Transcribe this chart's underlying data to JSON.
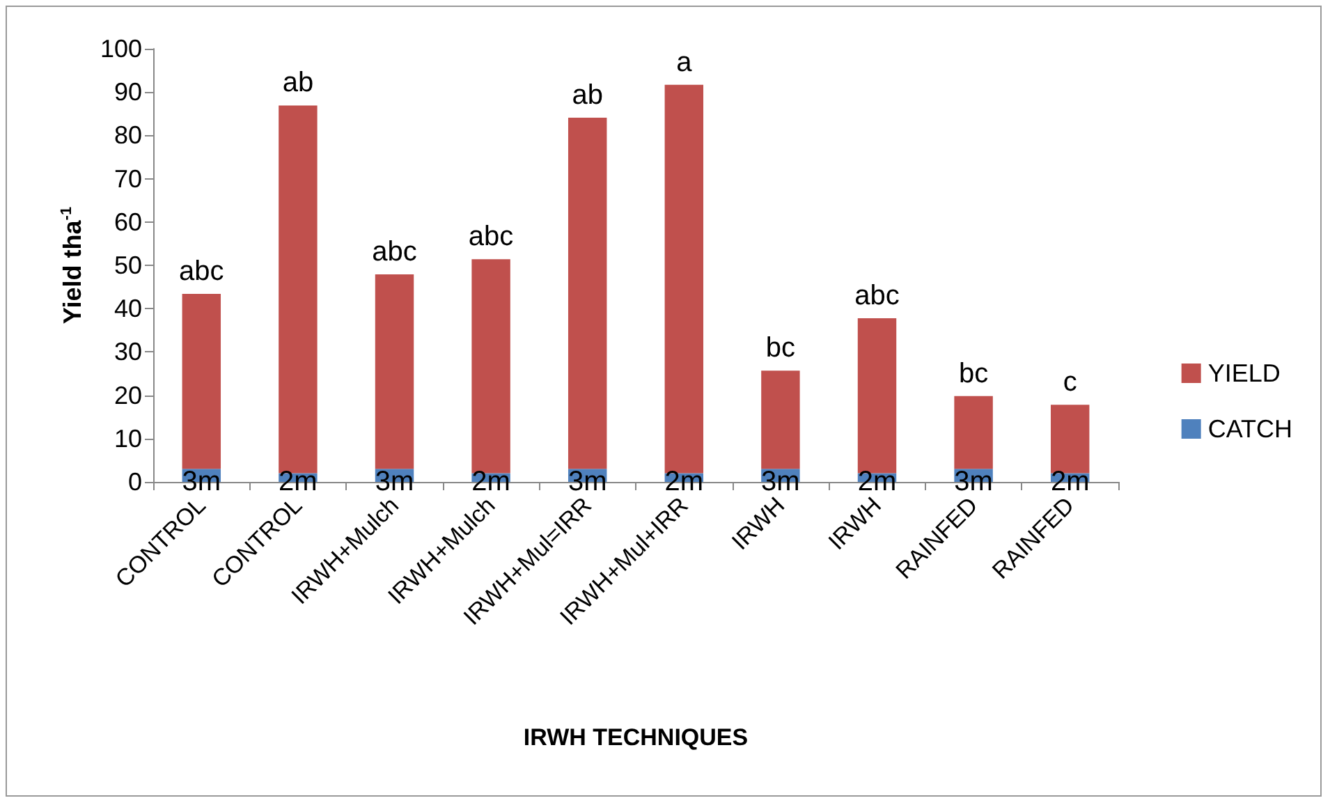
{
  "chart_data": {
    "type": "bar",
    "stacked": true,
    "xlabel": "IRWH TECHNIQUES",
    "ylabel": "Yield tha$^{-1}$",
    "categories": [
      "CONTROL",
      "CONTROL",
      "IRWH+Mulch",
      "IRWH+Mulch",
      "IRWH+Mul=IRR",
      "IRWH+Mul+IRR",
      "IRWH",
      "IRWH",
      "RAINFED",
      "RAINFED"
    ],
    "series": [
      {
        "name": "CATCH",
        "color": "#4f81bd",
        "values": [
          3,
          2,
          3,
          2,
          3,
          2,
          3,
          2,
          3,
          2
        ],
        "value_labels": [
          "3m",
          "2m",
          "3m",
          "2m",
          "3m",
          "2m",
          "3m",
          "2m",
          "3m",
          "2m"
        ]
      },
      {
        "name": "YIELD",
        "color": "#c0504d",
        "values": [
          40.4,
          84.9,
          44.9,
          49.4,
          81.1,
          89.7,
          22.7,
          35.8,
          16.8,
          15.8
        ],
        "value_labels": [
          "abc",
          "ab",
          "abc",
          "abc",
          "ab",
          "a",
          "bc",
          "abc",
          "bc",
          "c"
        ]
      }
    ],
    "ylim": [
      0,
      100
    ],
    "yticks": [
      0,
      10,
      20,
      30,
      40,
      50,
      60,
      70,
      80,
      90,
      100
    ],
    "grid": false,
    "legend": "right"
  }
}
